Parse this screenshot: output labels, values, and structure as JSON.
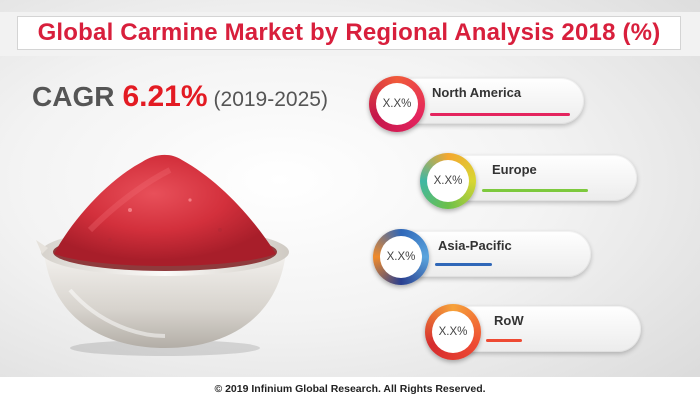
{
  "title": "Global Carmine Market by Regional Analysis 2018 (%)",
  "cagr": {
    "label": "CAGR",
    "value": "6.21%",
    "period": "(2019-2025)"
  },
  "regions": [
    {
      "name": "North America",
      "value": "X.X%",
      "color": "#e4245e"
    },
    {
      "name": "Europe",
      "value": "X.X%",
      "color": "#7dc93d"
    },
    {
      "name": "Asia-Pacific",
      "value": "X.X%",
      "color": "#2f67b8"
    },
    {
      "name": "RoW",
      "value": "X.X%",
      "color": "#ee4a33"
    }
  ],
  "footer": "© 2019 Infinium Global Research. All Rights Reserved."
}
